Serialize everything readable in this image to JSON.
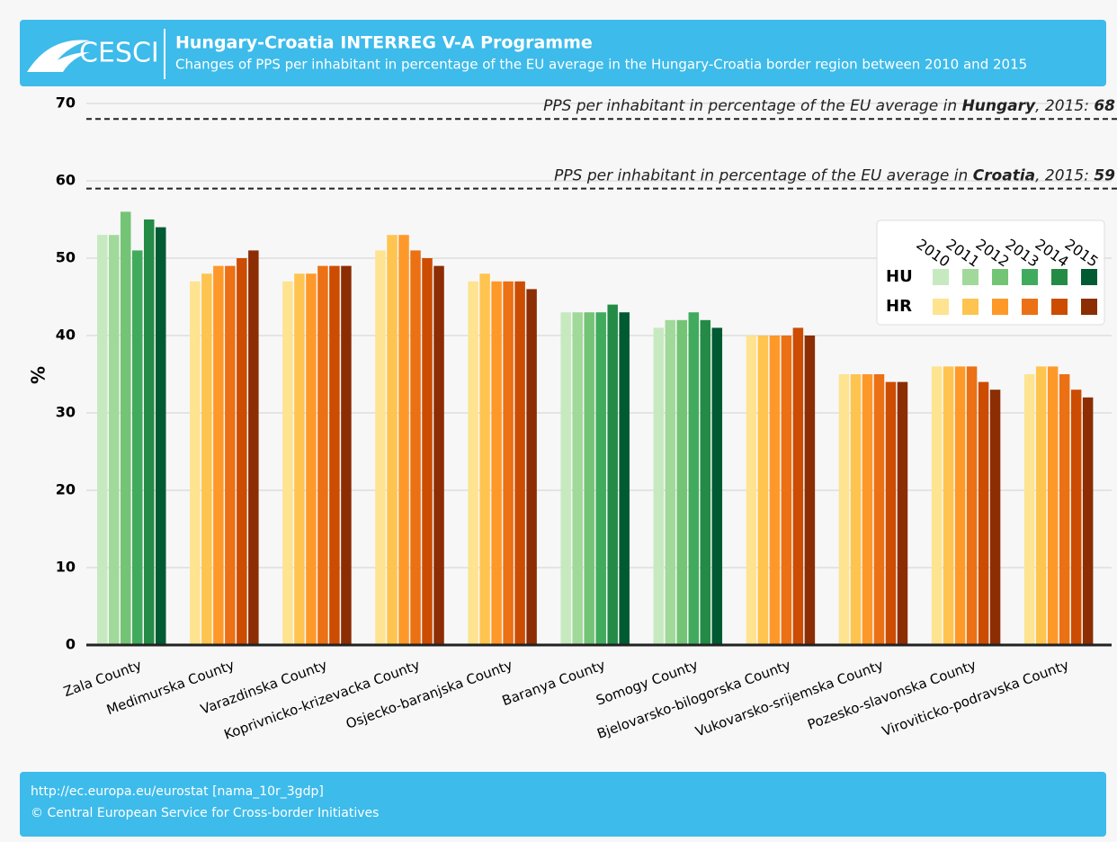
{
  "header": {
    "logo": "CESCI",
    "title": "Hungary-Croatia INTERREG V-A Programme",
    "subtitle": "Changes of PPS per inhabitant in percentage of the EU average in the Hungary-Croatia border region between 2010 and 2015"
  },
  "footer": {
    "source": "http://ec.europa.eu/eurostat [nama_10r_3gdp]",
    "copyright": "© Central European Service for Cross-border Initiatives"
  },
  "chart_data": {
    "type": "bar",
    "y_label": "%",
    "categories": [
      "Zala County",
      "Medimurska County",
      "Varazdinska County",
      "Koprivnicko-krizevacka County",
      "Osjecko-baranjska County",
      "Baranya County",
      "Somogy County",
      "Bjelovarsko-bilogorska County",
      "Vukovarsko-srijemska County",
      "Pozesko-slavonska County",
      "Viroviticko-podravska County"
    ],
    "category_palette": [
      0,
      1,
      1,
      1,
      1,
      0,
      0,
      1,
      1,
      1,
      1
    ],
    "palettes": [
      {
        "name": "HU",
        "colors": [
          "#c7e9c0",
          "#a1d99b",
          "#74c476",
          "#41ab5d",
          "#238b45",
          "#005a32"
        ]
      },
      {
        "name": "HR",
        "colors": [
          "#fee391",
          "#fec44f",
          "#fe9929",
          "#ec7014",
          "#cc4c02",
          "#8c2d04"
        ]
      }
    ],
    "series": [
      {
        "name": "2010",
        "values": [
          53,
          47,
          47,
          51,
          47,
          43,
          41,
          40,
          35,
          36,
          35
        ]
      },
      {
        "name": "2011",
        "values": [
          53,
          48,
          48,
          53,
          48,
          43,
          42,
          40,
          35,
          36,
          36
        ]
      },
      {
        "name": "2012",
        "values": [
          56,
          49,
          48,
          53,
          47,
          43,
          42,
          40,
          35,
          36,
          36
        ]
      },
      {
        "name": "2013",
        "values": [
          51,
          49,
          49,
          51,
          47,
          43,
          43,
          40,
          35,
          36,
          35
        ]
      },
      {
        "name": "2014",
        "values": [
          55,
          50,
          49,
          50,
          47,
          44,
          42,
          41,
          34,
          34,
          33
        ]
      },
      {
        "name": "2015",
        "values": [
          54,
          51,
          49,
          49,
          46,
          43,
          41,
          40,
          34,
          33,
          32
        ]
      }
    ],
    "reference_lines": [
      {
        "text_before": "PPS per inhabitant in percentage of the EU average in ",
        "country": "Hungary",
        "text_after": ", 2015: ",
        "value": 68
      },
      {
        "text_before": "PPS per inhabitant in percentage of the EU average in ",
        "country": "Croatia",
        "text_after": ", 2015: ",
        "value": 59
      }
    ],
    "ylim": [
      0,
      70
    ],
    "yticks": [
      0,
      10,
      20,
      30,
      40,
      50,
      60,
      70
    ],
    "grid": true
  }
}
